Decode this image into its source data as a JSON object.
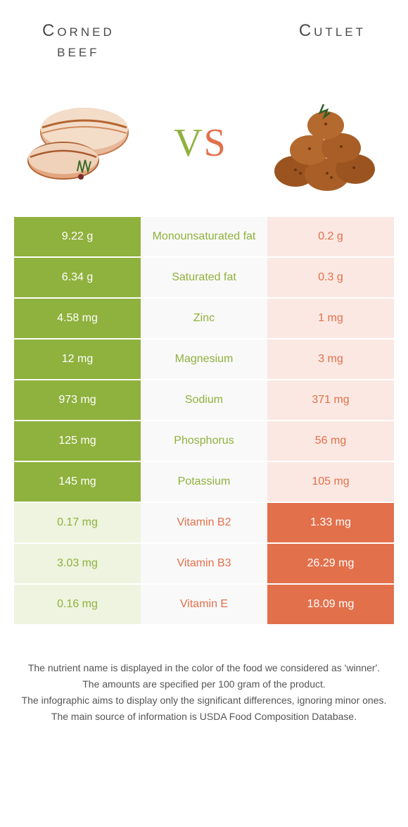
{
  "header": {
    "left_title": "Corned\nbeef",
    "right_title": "Cutlet",
    "vs_text": "vs"
  },
  "colors": {
    "left": "#8fb13d",
    "right": "#e2704b",
    "left_dim": "#eef4df",
    "right_dim": "#fbe8e2",
    "left_dim_text": "#8fb13d",
    "right_dim_text": "#e2704b",
    "mid_bg": "#f9f9f9",
    "vs_left": "#8fb13d",
    "vs_right": "#e2704b"
  },
  "rows": [
    {
      "label": "Monounsaturated fat",
      "left": "9.22 g",
      "right": "0.2 g",
      "winner": "left"
    },
    {
      "label": "Saturated fat",
      "left": "6.34 g",
      "right": "0.3 g",
      "winner": "left"
    },
    {
      "label": "Zinc",
      "left": "4.58 mg",
      "right": "1 mg",
      "winner": "left"
    },
    {
      "label": "Magnesium",
      "left": "12 mg",
      "right": "3 mg",
      "winner": "left"
    },
    {
      "label": "Sodium",
      "left": "973 mg",
      "right": "371 mg",
      "winner": "left"
    },
    {
      "label": "Phosphorus",
      "left": "125 mg",
      "right": "56 mg",
      "winner": "left"
    },
    {
      "label": "Potassium",
      "left": "145 mg",
      "right": "105 mg",
      "winner": "left"
    },
    {
      "label": "Vitamin B2",
      "left": "0.17 mg",
      "right": "1.33 mg",
      "winner": "right"
    },
    {
      "label": "Vitamin B3",
      "left": "3.03 mg",
      "right": "26.29 mg",
      "winner": "right"
    },
    {
      "label": "Vitamin E",
      "left": "0.16 mg",
      "right": "18.09 mg",
      "winner": "right"
    }
  ],
  "footnotes": [
    "The nutrient name is displayed in the color of the food we considered as 'winner'.",
    "The amounts are specified per 100 gram of the product.",
    "The infographic aims to display only the significant differences, ignoring minor ones.",
    "The main source of information is USDA Food Composition Database."
  ]
}
